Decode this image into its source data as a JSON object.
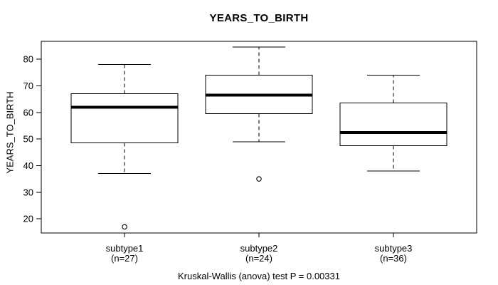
{
  "chart_data": {
    "type": "boxplot",
    "title": "YEARS_TO_BIRTH",
    "xlabel": "",
    "ylabel": "YEARS_TO_BIRTH",
    "caption": "Kruskal-Wallis (anova) test P = 0.00331",
    "y_axis": {
      "ticks": [
        20,
        30,
        40,
        50,
        60,
        70,
        80
      ],
      "range": [
        14.7,
        86.7
      ],
      "grid": false
    },
    "legend": null,
    "groups": [
      {
        "label": "subtype1",
        "sublabel": "(n=27)",
        "n": 27,
        "whisker_low": 37,
        "q1": 48.5,
        "median": 62,
        "q3": 67,
        "whisker_high": 78,
        "outliers": [
          17
        ]
      },
      {
        "label": "subtype2",
        "sublabel": "(n=24)",
        "n": 24,
        "whisker_low": 49,
        "q1": 59.5,
        "median": 66.5,
        "q3": 74,
        "whisker_high": 84.5,
        "outliers": [
          35
        ]
      },
      {
        "label": "subtype3",
        "sublabel": "(n=36)",
        "n": 36,
        "whisker_low": 38,
        "q1": 47.5,
        "median": 52.5,
        "q3": 63.5,
        "whisker_high": 74,
        "outliers": []
      }
    ],
    "colors": {
      "line": "#000000",
      "median": "#000000",
      "box_fill": "#ffffff",
      "background": "#ffffff"
    }
  }
}
